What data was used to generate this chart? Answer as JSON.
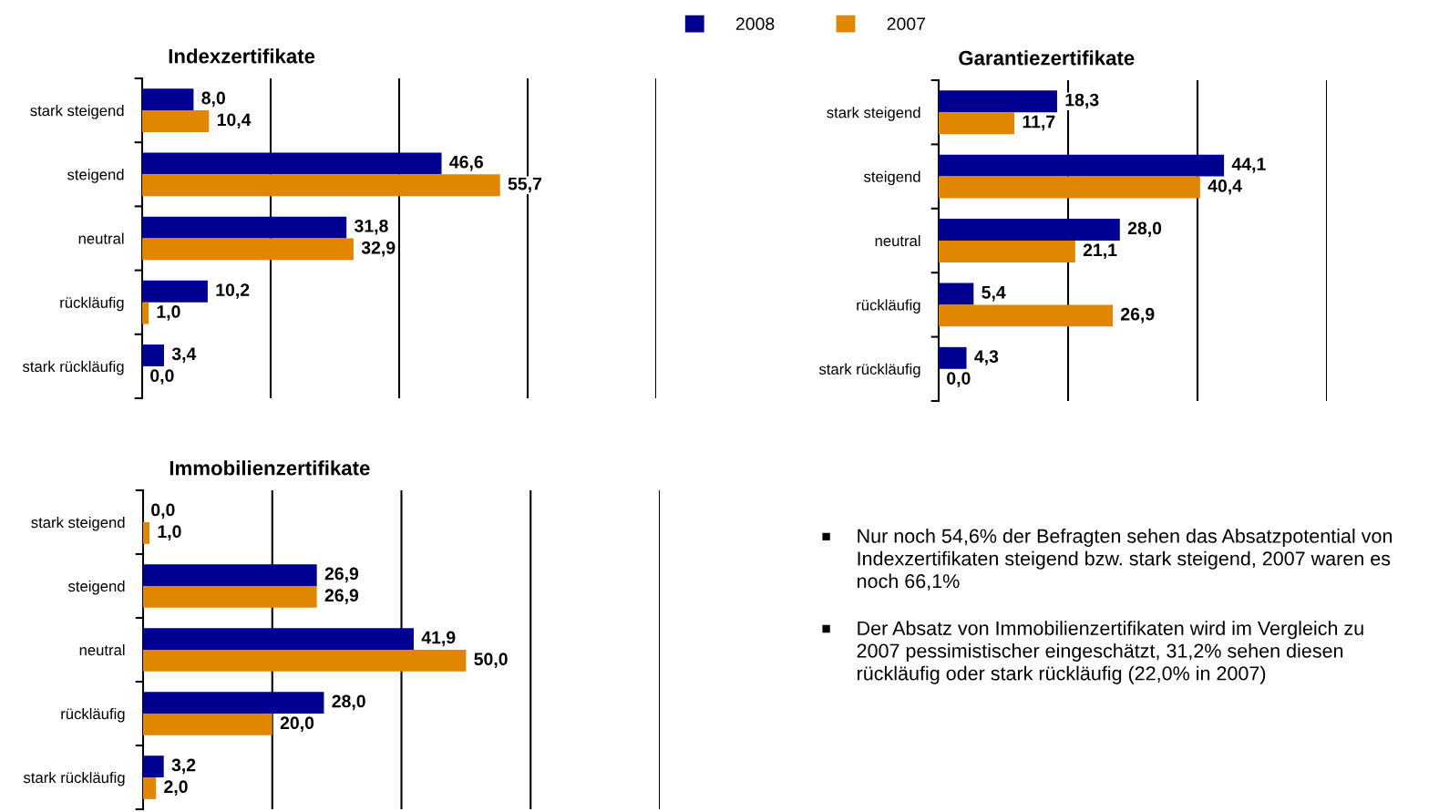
{
  "chart_data": [
    {
      "type": "bar",
      "orientation": "horizontal",
      "title": "Indexzertifikate",
      "categories": [
        "stark steigend",
        "steigend",
        "neutral",
        "rückläufig",
        "stark rückläufig"
      ],
      "series": [
        {
          "name": "2008",
          "color": "#000090",
          "values": [
            8.0,
            46.6,
            31.8,
            10.2,
            3.4
          ],
          "value_labels": [
            "8,0",
            "46,6",
            "31,8",
            "10,2",
            "3,4"
          ]
        },
        {
          "name": "2007",
          "color": "#e08600",
          "values": [
            10.4,
            55.7,
            32.9,
            1.0,
            0.0
          ],
          "value_labels": [
            "10,4",
            "55,7",
            "32,9",
            "1,0",
            "0,0"
          ]
        }
      ],
      "xlim": [
        0,
        80
      ],
      "xticks": [
        {
          "value": 20,
          "label": null
        },
        {
          "value": 40,
          "label": null
        },
        {
          "value": 60,
          "label": null
        },
        {
          "value": 80,
          "label": null
        }
      ],
      "grid": "x",
      "tick_labels": "y",
      "legend": "top"
    },
    {
      "type": "bar",
      "orientation": "horizontal",
      "title": "Garantiezertifikate",
      "categories": [
        "stark steigend",
        "steigend",
        "neutral",
        "rückläufig",
        "stark rückläufig"
      ],
      "series": [
        {
          "name": "2008",
          "color": "#000090",
          "values": [
            18.3,
            44.1,
            28.0,
            5.4,
            4.3
          ],
          "value_labels": [
            "18,3",
            "44,1",
            "28,0",
            "5,4",
            "4,3"
          ]
        },
        {
          "name": "2007",
          "color": "#e08600",
          "values": [
            11.7,
            40.4,
            21.1,
            26.9,
            0.0
          ],
          "value_labels": [
            "11,7",
            "40,4",
            "21,1",
            "26,9",
            "0,0"
          ]
        }
      ],
      "xlim": [
        0,
        60
      ],
      "xticks": [
        {
          "value": 20,
          "label": null
        },
        {
          "value": 40,
          "label": null
        },
        {
          "value": 60,
          "label": null
        }
      ],
      "grid": "x",
      "tick_labels": "y"
    },
    {
      "type": "bar",
      "orientation": "horizontal",
      "title": "Immobilienzertifikate",
      "categories": [
        "stark steigend",
        "steigend",
        "neutral",
        "rückläufig",
        "stark rückläufig"
      ],
      "series": [
        {
          "name": "2008",
          "color": "#000090",
          "values": [
            0.0,
            26.9,
            41.9,
            28.0,
            3.2
          ],
          "value_labels": [
            "0,0",
            "26,9",
            "41,9",
            "28,0",
            "3,2"
          ]
        },
        {
          "name": "2007",
          "color": "#e08600",
          "values": [
            1.0,
            26.9,
            50.0,
            20.0,
            2.0
          ],
          "value_labels": [
            "1,0",
            "26,9",
            "50,0",
            "20,0",
            "2,0"
          ]
        }
      ],
      "xlim": [
        0,
        80
      ],
      "xticks": [
        {
          "value": 20,
          "label": null
        },
        {
          "value": 40,
          "label": null
        },
        {
          "value": 60,
          "label": null
        },
        {
          "value": 80,
          "label": null
        }
      ],
      "grid": "x",
      "tick_labels": "y"
    },
    {
      "type": "other",
      "annotations": [
        "Nur noch 54,6% der Befragten sehen das Absatzpotential von Indexzertifikaten steigend bzw. stark steigend, 2007 waren es noch 66,1%",
        "Der Absatz von Immobilienzertifikaten wird im Vergleich zu 2007 pessimistischer eingeschätzt, 31,2% sehen diesen rückläufig oder stark rückläufig (22,0% in 2007)"
      ]
    }
  ]
}
